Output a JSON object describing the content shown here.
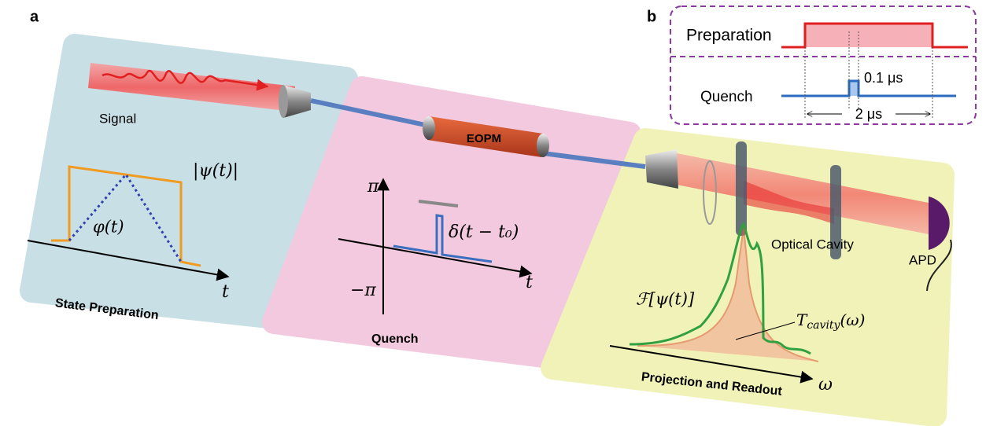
{
  "panel_a": {
    "label": "a",
    "state_preparation": {
      "signal": "Signal",
      "amplitude": "|ψ(t)|",
      "phase": "φ(t)",
      "title": "State Preparation",
      "axis": "t"
    },
    "quench": {
      "modulator": "EOPM",
      "top": "π",
      "bottom": "−π",
      "pulse": "δ(t − t₀)",
      "axis": "t",
      "title": "Quench"
    },
    "readout": {
      "cavity": "Optical Cavity",
      "detector": "APD",
      "spectrum": "ℱ[ψ(t)]",
      "transmission_base": "T",
      "transmission_sub": "cavity",
      "transmission_arg": "(ω)",
      "title": "Projection and Readout",
      "axis": "ω"
    }
  },
  "panel_b": {
    "label": "b",
    "preparation": "Preparation",
    "quench": "Quench",
    "pulse_width": "0.1 μs",
    "window": "2 μs"
  }
}
